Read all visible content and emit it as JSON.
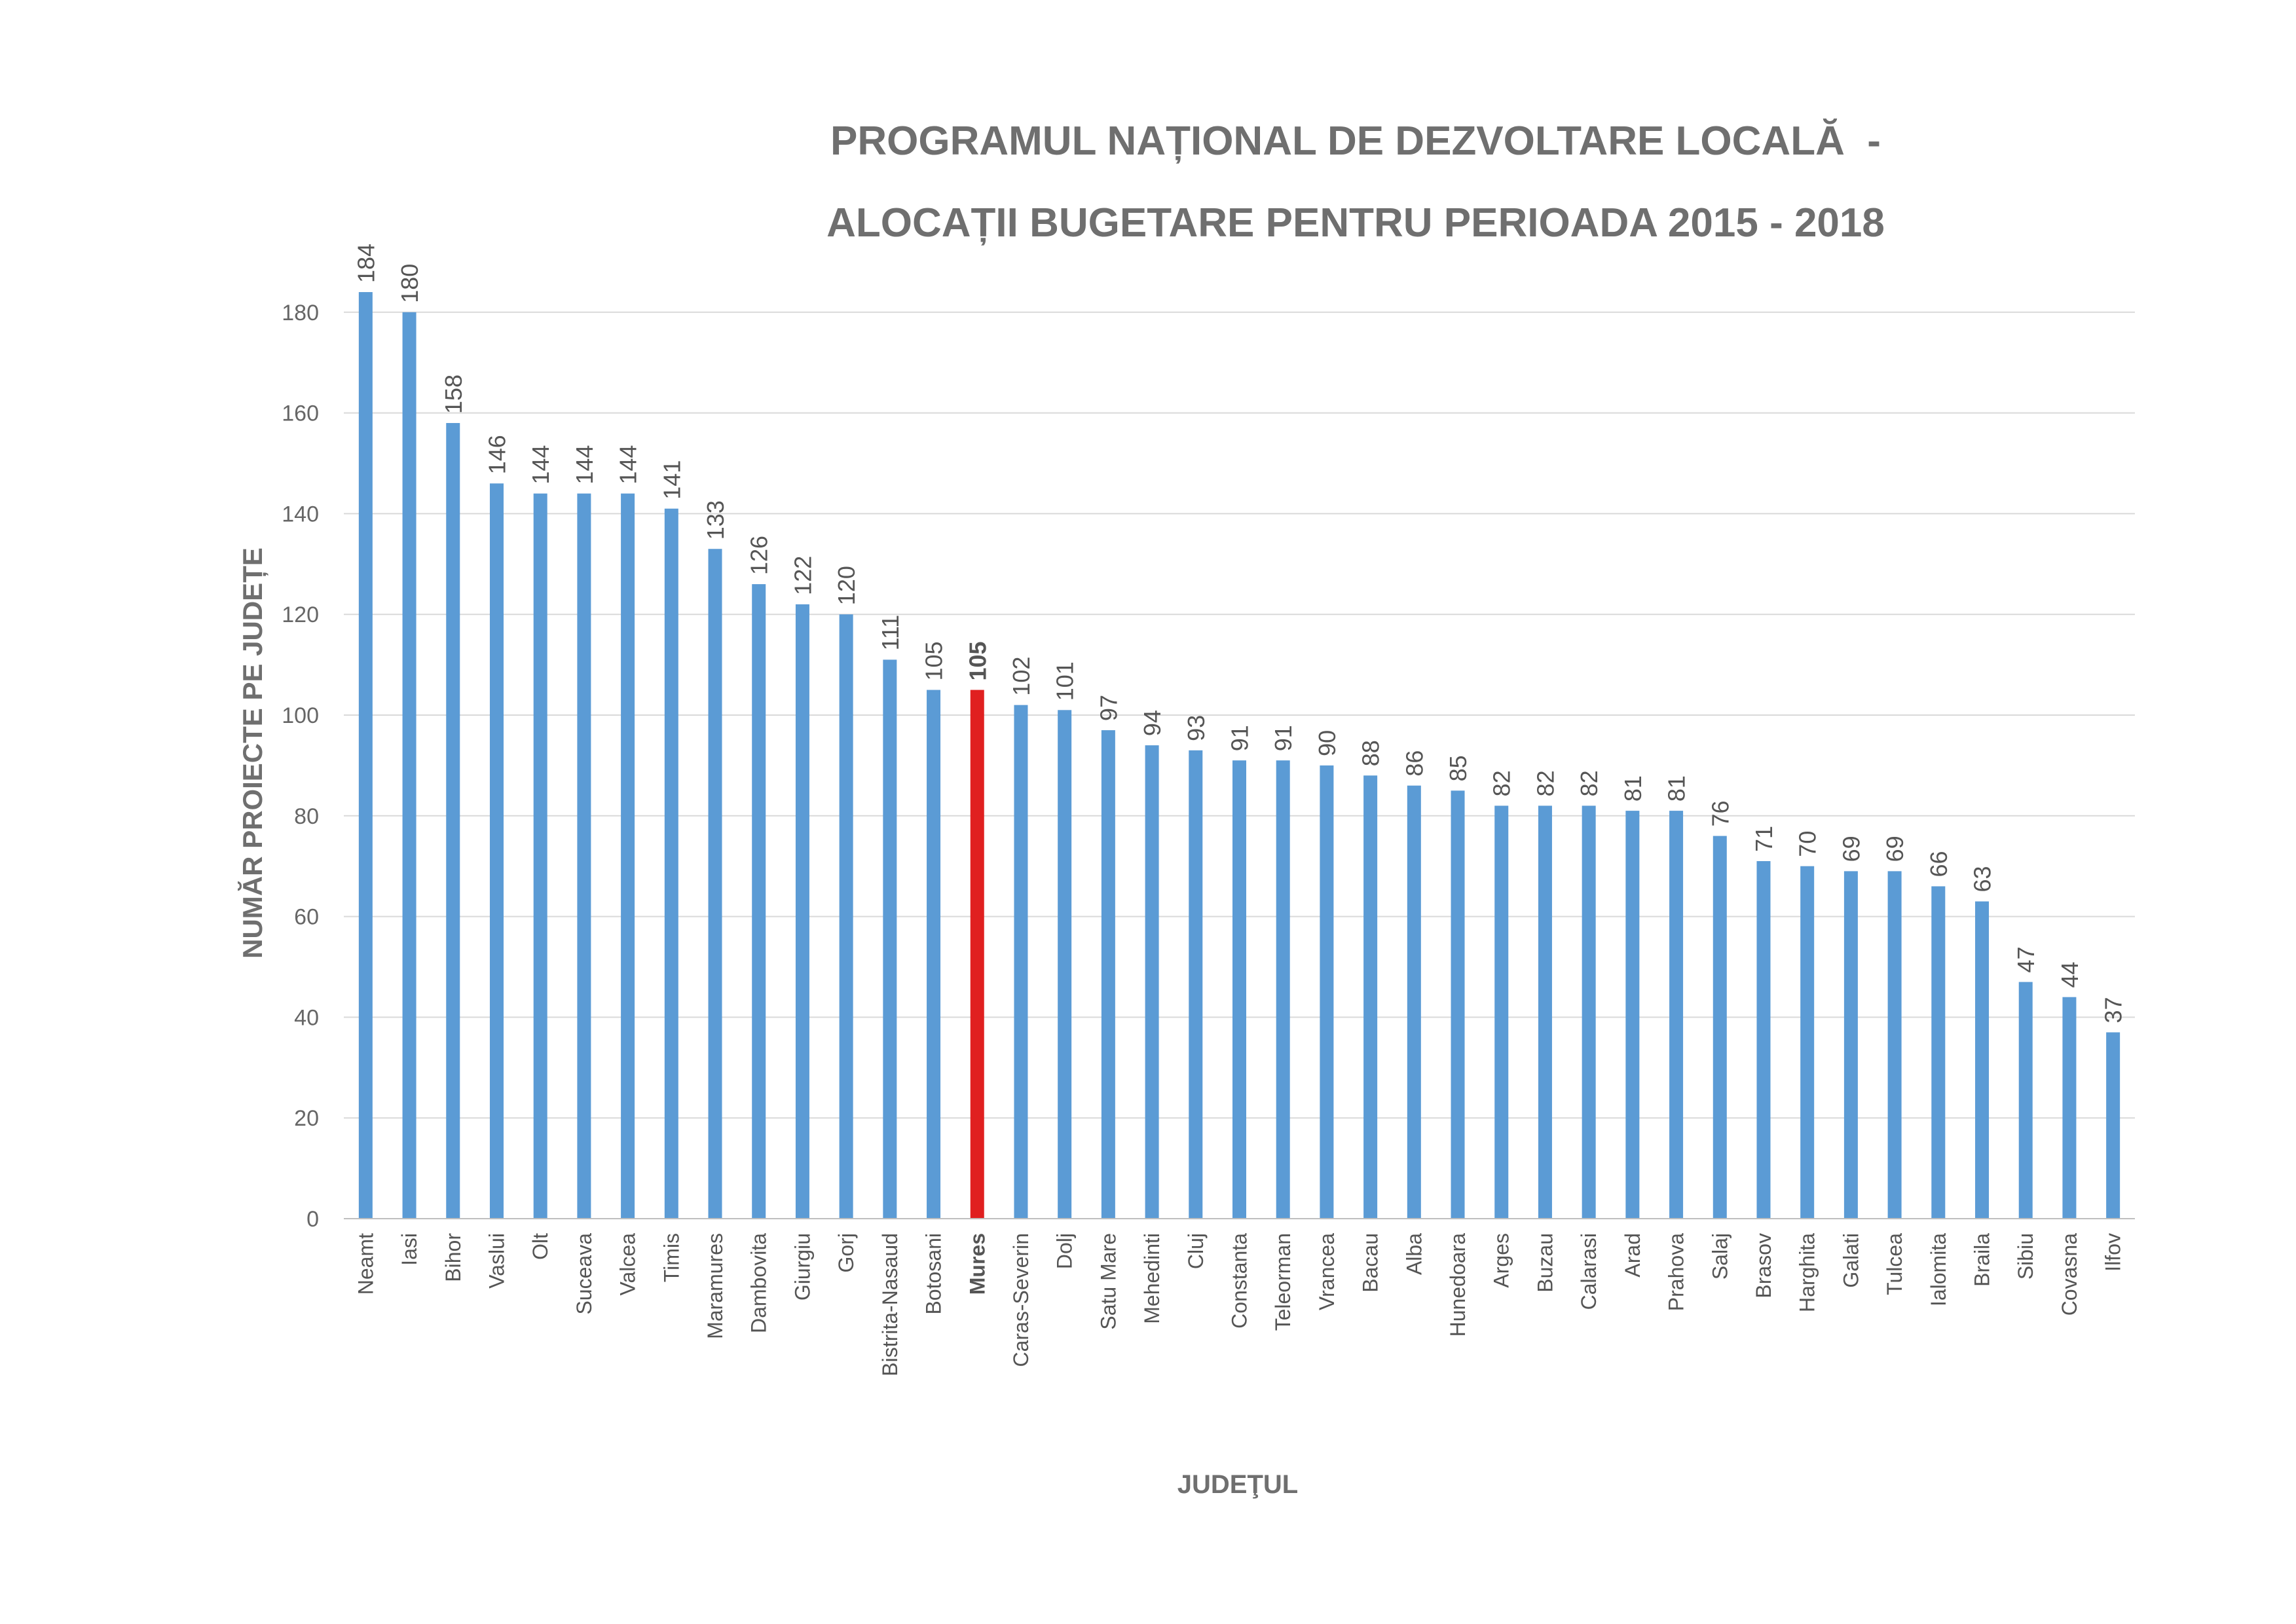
{
  "chart_data": {
    "type": "bar",
    "title_lines": [
      "PROGRAMUL NAȚIONAL DE DEZVOLTARE LOCALĂ  -",
      "ALOCAȚII BUGETARE PENTRU PERIOADA 2015 - 2018"
    ],
    "xlabel": "JUDEŢUL",
    "ylabel": "NUMĂR PROIECTE PE JUDEȚE",
    "ylim": [
      0,
      180
    ],
    "ytick_step": 20,
    "grid": true,
    "categories": [
      "Neamt",
      "Iasi",
      "Bihor",
      "Vaslui",
      "Olt",
      "Suceava",
      "Valcea",
      "Timis",
      "Maramures",
      "Dambovita",
      "Giurgiu",
      "Gorj",
      "Bistrita-Nasaud",
      "Botosani",
      "Mures",
      "Caras-Severin",
      "Dolj",
      "Satu Mare",
      "Mehedinti",
      "Cluj",
      "Constanta",
      "Teleorman",
      "Vrancea",
      "Bacau",
      "Alba",
      "Hunedoara",
      "Arges",
      "Buzau",
      "Calarasi",
      "Arad",
      "Prahova",
      "Salaj",
      "Brasov",
      "Harghita",
      "Galati",
      "Tulcea",
      "Ialomita",
      "Braila",
      "Sibiu",
      "Covasna",
      "Ilfov"
    ],
    "values": [
      184,
      180,
      158,
      146,
      144,
      144,
      144,
      141,
      133,
      126,
      122,
      120,
      111,
      105,
      105,
      102,
      101,
      97,
      94,
      93,
      91,
      91,
      90,
      88,
      86,
      85,
      82,
      82,
      82,
      81,
      81,
      76,
      71,
      70,
      69,
      69,
      66,
      63,
      47,
      44,
      37
    ],
    "highlight_category": "Mures",
    "colors": {
      "bar": "#5b9bd5",
      "highlight_bar": "#e02020",
      "highlight_text": "#d7191c",
      "gridline": "#d9d9d9",
      "axis_line": "#bfbfbf"
    }
  }
}
